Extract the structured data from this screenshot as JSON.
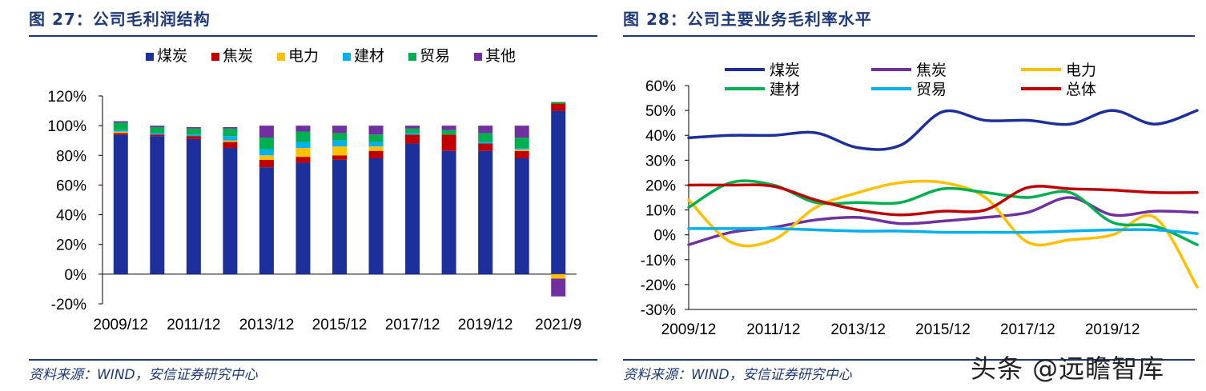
{
  "left": {
    "title": "图 27：公司毛利润结构",
    "source": "资料来源：WIND，安信证券研究中心"
  },
  "right": {
    "title": "图 28：公司主要业务毛利率水平",
    "source": "资料来源：WIND，安信证券研究中心"
  },
  "watermark": "头条 @远瞻智库",
  "chart_data": [
    {
      "type": "bar",
      "stacked": true,
      "title": "",
      "categories": [
        "2009/12",
        "2010/12",
        "2011/12",
        "2012/12",
        "2013/12",
        "2014/12",
        "2015/12",
        "2016/12",
        "2017/12",
        "2018/12",
        "2019/12",
        "2020/12",
        "2021/9"
      ],
      "x_tick_labels": [
        "2009/12",
        "2011/12",
        "2013/12",
        "2015/12",
        "2017/12",
        "2019/12",
        "2021/9"
      ],
      "y_tick_labels": [
        "120%",
        "100%",
        "80%",
        "60%",
        "40%",
        "20%",
        "0%",
        "-20%"
      ],
      "ylim": [
        -20,
        120
      ],
      "legend_position": "top",
      "series": [
        {
          "name": "煤炭",
          "color": "#1c2f9b",
          "values": [
            94,
            93,
            91,
            85,
            72,
            75,
            77,
            78,
            88,
            83,
            83,
            78,
            110
          ]
        },
        {
          "name": "焦炭",
          "color": "#c00000",
          "values": [
            1,
            1,
            2,
            4,
            5,
            4,
            3,
            5,
            6,
            11,
            5,
            5,
            5
          ]
        },
        {
          "name": "电力",
          "color": "#ffc000",
          "values": [
            1,
            0,
            0,
            1,
            3,
            6,
            6,
            3,
            0,
            0,
            0,
            1,
            -3
          ]
        },
        {
          "name": "建材",
          "color": "#00b0f0",
          "values": [
            1,
            1,
            1,
            3,
            4,
            4,
            4,
            3,
            1,
            0,
            1,
            1,
            0
          ]
        },
        {
          "name": "贸易",
          "color": "#00b050",
          "values": [
            5,
            4,
            4,
            5,
            8,
            7,
            5,
            5,
            3,
            3,
            6,
            7,
            1
          ]
        },
        {
          "name": "其他",
          "color": "#7030a0",
          "values": [
            1,
            1,
            1,
            1,
            8,
            4,
            5,
            6,
            2,
            3,
            5,
            8,
            -12
          ]
        }
      ]
    },
    {
      "type": "line",
      "title": "",
      "x": [
        "2009/12",
        "2010/12",
        "2011/12",
        "2012/12",
        "2013/12",
        "2014/12",
        "2015/12",
        "2016/12",
        "2017/12",
        "2018/12",
        "2019/12",
        "2020/12",
        "2021/9"
      ],
      "x_tick_labels": [
        "2009/12",
        "2011/12",
        "2013/12",
        "2015/12",
        "2017/12",
        "2019/12"
      ],
      "y_tick_labels": [
        "60%",
        "50%",
        "40%",
        "30%",
        "20%",
        "10%",
        "0%",
        "-10%",
        "-20%",
        "-30%"
      ],
      "ylim": [
        -30,
        60
      ],
      "legend_position": "top",
      "series": [
        {
          "name": "煤炭",
          "color": "#1c2f9b",
          "values": [
            39,
            40,
            40,
            41,
            35,
            36,
            49.5,
            46,
            46,
            44.5,
            50,
            44.5,
            50
          ]
        },
        {
          "name": "焦炭",
          "color": "#7030a0",
          "values": [
            -4,
            1,
            3,
            6,
            7,
            4.5,
            5.5,
            7,
            9,
            15,
            8,
            9.5,
            9
          ]
        },
        {
          "name": "电力",
          "color": "#ffc000",
          "values": [
            14,
            -3,
            -2,
            11,
            17,
            21,
            21,
            15,
            -3,
            -2,
            0,
            7,
            -21
          ]
        },
        {
          "name": "建材",
          "color": "#00b050",
          "values": [
            11,
            21,
            20,
            13,
            13,
            13,
            18.5,
            17,
            15,
            17,
            5,
            3.5,
            -4
          ]
        },
        {
          "name": "贸易",
          "color": "#00b0f0",
          "values": [
            2.5,
            2.5,
            2.5,
            2,
            1.5,
            1.5,
            1,
            1,
            1,
            1.5,
            2,
            2,
            0.5
          ]
        },
        {
          "name": "总体",
          "color": "#c00000",
          "values": [
            20,
            20,
            19.5,
            14,
            10,
            8,
            9.5,
            10,
            19,
            18.5,
            18,
            17,
            17
          ]
        }
      ]
    }
  ]
}
